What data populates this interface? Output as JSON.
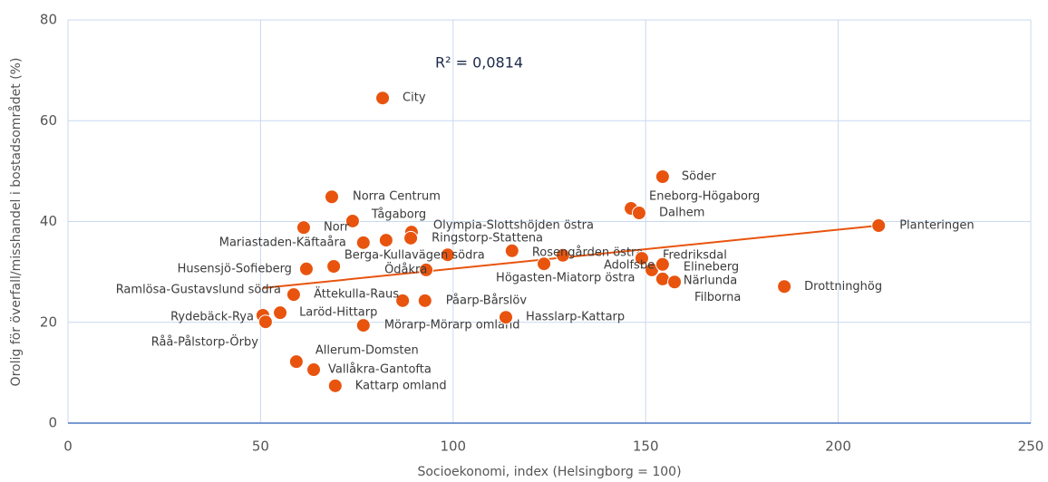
{
  "chart_data": {
    "type": "scatter",
    "x_label": "Socioekonomi, index (Helsingborg = 100)",
    "y_label": "Orolig för överfall/misshandel i bostadsområdet (%)",
    "annotation": "R² = 0,0814",
    "color": "#e8540e",
    "labels": [
      "City",
      "Söder",
      "Norra Centrum",
      "Eneborg-Högaborg",
      "Dalhem",
      "Tågaborg",
      "Norr",
      "Planteringen",
      "Olympia-Slottshöjden östra",
      "Ringstorp-Stattena",
      "Mariastaden-Käftaåra",
      null,
      "Berga-Kullavägen södra",
      null,
      "Rosengården östra",
      "Högasten-Miatorp östra",
      "Fredriksdal",
      "Adolfsberg",
      "Elineberg",
      "Närlunda",
      "Filborna",
      "Drottninghög",
      "Husensjö-Sofieberg",
      null,
      "Ödåkra",
      "Ramlösa-Gustavslund södra",
      "Ättekulla-Raus",
      "Påarp-Bårslöv",
      "Rydebäck-Rya",
      "Laröd-Hittarp",
      "Råå-Pålstorp-Örby",
      "Mörarp-Mörarp omland",
      "Hasslarp-Kattarp",
      "Allerum-Domsten",
      "Vallåkra-Gantofta",
      "Kattarp omland"
    ],
    "x": [
      81.7,
      154.4,
      68.5,
      146.2,
      148.3,
      73.9,
      61.2,
      210.5,
      89.2,
      89.0,
      76.7,
      82.6,
      98.6,
      115.3,
      128.5,
      123.6,
      149.0,
      151.6,
      154.4,
      154.4,
      157.5,
      186.0,
      61.9,
      69.0,
      93.0,
      58.6,
      86.9,
      92.7,
      50.6,
      55.1,
      51.3,
      76.7,
      113.7,
      59.3,
      63.8,
      69.4
    ],
    "values": [
      64.5,
      48.9,
      44.9,
      42.6,
      41.7,
      40.1,
      38.8,
      39.2,
      37.9,
      36.7,
      35.8,
      36.3,
      33.4,
      34.2,
      33.3,
      31.6,
      32.7,
      30.4,
      31.5,
      28.6,
      28.0,
      27.1,
      30.6,
      31.1,
      30.4,
      25.5,
      24.3,
      24.3,
      21.4,
      21.9,
      20.1,
      19.4,
      21.0,
      12.2,
      10.6,
      7.4
    ],
    "trendline": {
      "x": [
        50.6,
        210.5
      ],
      "values": [
        26.8,
        39.2
      ],
      "color": "#e8540e"
    },
    "xlim": [
      0,
      250
    ],
    "xticks": [
      0,
      50,
      100,
      150,
      200,
      250
    ],
    "ylim": [
      0,
      80
    ],
    "yticks": [
      0,
      20,
      40,
      60,
      80
    ],
    "grid": true
  }
}
